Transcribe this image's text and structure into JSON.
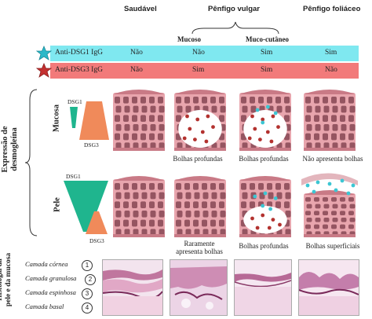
{
  "columns": {
    "healthy": "Saudável",
    "vulgaris": "Pênfigo vulgar",
    "foliaceus": "Pênfigo foliáceo",
    "mucosal": "Mucoso",
    "mucocutaneous": "Muco-cutâneo"
  },
  "antibodies": [
    {
      "name": "Anti-DSG1 IgG",
      "color": "#7fe8f0",
      "star_color": "#2bb8c8",
      "values": [
        "Não",
        "Não",
        "Sim",
        "Sim"
      ]
    },
    {
      "name": "Anti-DSG3 IgG",
      "color": "#f27a7a",
      "star_color": "#c43030",
      "values": [
        "Não",
        "Sim",
        "Sim",
        "Não"
      ]
    }
  ],
  "side": {
    "expression": "Expressão de desmogleína",
    "mucosa": "Mucosa",
    "skin": "Pele",
    "dsg1": "DSG1",
    "dsg3": "DSG3",
    "histology": "Histologia da pele e da mucosa"
  },
  "mucosa_captions": [
    "Bolhas profundas",
    "Bolhas profundas",
    "Não apresenta bolhas"
  ],
  "skin_captions": [
    "Raramente apresenta bolhas",
    "Bolhas profundas",
    "Bolhas superficiais"
  ],
  "layers": [
    {
      "num": "1",
      "label": "Camada córnea"
    },
    {
      "num": "2",
      "label": "Camada granulosa"
    },
    {
      "num": "3",
      "label": "Camada espinhosa"
    },
    {
      "num": "4",
      "label": "Camada basal"
    }
  ],
  "colors": {
    "dsg1_shape": "#1fb58e",
    "dsg3_shape": "#f08a5a",
    "tissue": "#e8a5ad",
    "tissue_dark": "#c97a86",
    "cell": "#7a3b48",
    "blister_dot": "#b3322f",
    "cyan_dot": "#3cc6d3"
  }
}
